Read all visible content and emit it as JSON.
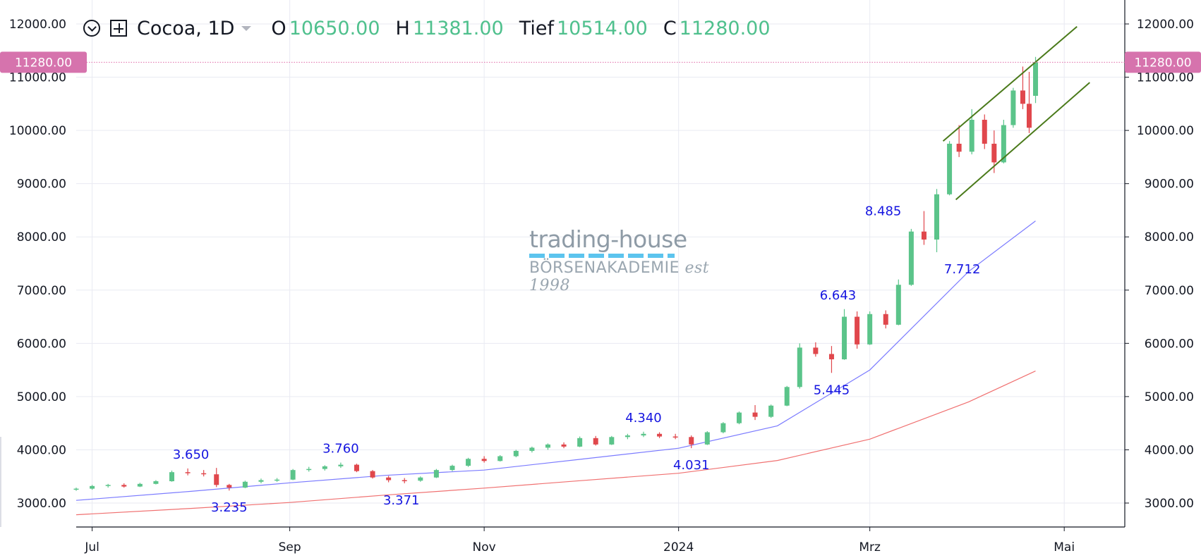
{
  "legend": {
    "symbol": "Cocoa, 1D",
    "open_label": "O",
    "open": "10650.00",
    "high_label": "H",
    "high": "11381.00",
    "low_label": "Tief",
    "low": "10514.00",
    "close_label": "C",
    "close": "11280.00"
  },
  "watermark": {
    "line1": "trading-house",
    "line2": "BÖRSENAKADEMIE",
    "line3": "est 1998"
  },
  "chart_data": {
    "type": "candlestick",
    "x_range": [
      "2023-06-26",
      "2024-05-20"
    ],
    "y_range": [
      2550,
      12450
    ],
    "y_ticks": [
      3000,
      4000,
      5000,
      6000,
      7000,
      8000,
      9000,
      10000,
      11000,
      12000
    ],
    "y_tick_labels": [
      "3000.00",
      "4000.00",
      "5000.00",
      "6000.00",
      "7000.00",
      "8000.00",
      "9000.00",
      "10000.00",
      "11000.00",
      "12000.00"
    ],
    "x_ticks": [
      {
        "date": "2023-07-01",
        "label": "Jul"
      },
      {
        "date": "2023-09-01",
        "label": "Sep"
      },
      {
        "date": "2023-11-01",
        "label": "Nov"
      },
      {
        "date": "2024-01-01",
        "label": "2024"
      },
      {
        "date": "2024-03-01",
        "label": "Mrz"
      },
      {
        "date": "2024-05-01",
        "label": "Mai"
      }
    ],
    "last_price": 11280,
    "last_price_label": "11280.00",
    "grid": true,
    "candles": [
      {
        "date": "2023-06-26",
        "o": 3250,
        "h": 3290,
        "l": 3230,
        "c": 3270
      },
      {
        "date": "2023-07-01",
        "o": 3270,
        "h": 3340,
        "l": 3250,
        "c": 3320
      },
      {
        "date": "2023-07-06",
        "o": 3320,
        "h": 3360,
        "l": 3290,
        "c": 3340
      },
      {
        "date": "2023-07-11",
        "o": 3340,
        "h": 3370,
        "l": 3290,
        "c": 3310
      },
      {
        "date": "2023-07-16",
        "o": 3310,
        "h": 3380,
        "l": 3300,
        "c": 3360
      },
      {
        "date": "2023-07-21",
        "o": 3360,
        "h": 3430,
        "l": 3350,
        "c": 3410
      },
      {
        "date": "2023-07-26",
        "o": 3410,
        "h": 3610,
        "l": 3400,
        "c": 3580
      },
      {
        "date": "2023-07-31",
        "o": 3580,
        "h": 3650,
        "l": 3520,
        "c": 3560
      },
      {
        "date": "2023-08-05",
        "o": 3560,
        "h": 3620,
        "l": 3500,
        "c": 3540
      },
      {
        "date": "2023-08-09",
        "o": 3540,
        "h": 3660,
        "l": 3300,
        "c": 3340
      },
      {
        "date": "2023-08-13",
        "o": 3340,
        "h": 3360,
        "l": 3235,
        "c": 3290
      },
      {
        "date": "2023-08-18",
        "o": 3290,
        "h": 3420,
        "l": 3280,
        "c": 3400
      },
      {
        "date": "2023-08-23",
        "o": 3400,
        "h": 3460,
        "l": 3370,
        "c": 3430
      },
      {
        "date": "2023-08-28",
        "o": 3430,
        "h": 3470,
        "l": 3400,
        "c": 3440
      },
      {
        "date": "2023-09-02",
        "o": 3440,
        "h": 3640,
        "l": 3430,
        "c": 3620
      },
      {
        "date": "2023-09-07",
        "o": 3620,
        "h": 3680,
        "l": 3590,
        "c": 3640
      },
      {
        "date": "2023-09-12",
        "o": 3640,
        "h": 3710,
        "l": 3610,
        "c": 3690
      },
      {
        "date": "2023-09-17",
        "o": 3690,
        "h": 3760,
        "l": 3660,
        "c": 3720
      },
      {
        "date": "2023-09-22",
        "o": 3720,
        "h": 3740,
        "l": 3580,
        "c": 3600
      },
      {
        "date": "2023-09-27",
        "o": 3600,
        "h": 3620,
        "l": 3460,
        "c": 3480
      },
      {
        "date": "2023-10-02",
        "o": 3480,
        "h": 3510,
        "l": 3390,
        "c": 3430
      },
      {
        "date": "2023-10-07",
        "o": 3430,
        "h": 3470,
        "l": 3371,
        "c": 3420
      },
      {
        "date": "2023-10-12",
        "o": 3420,
        "h": 3500,
        "l": 3400,
        "c": 3480
      },
      {
        "date": "2023-10-17",
        "o": 3480,
        "h": 3640,
        "l": 3470,
        "c": 3620
      },
      {
        "date": "2023-10-22",
        "o": 3620,
        "h": 3720,
        "l": 3600,
        "c": 3700
      },
      {
        "date": "2023-10-27",
        "o": 3700,
        "h": 3850,
        "l": 3680,
        "c": 3830
      },
      {
        "date": "2023-11-01",
        "o": 3830,
        "h": 3880,
        "l": 3760,
        "c": 3790
      },
      {
        "date": "2023-11-06",
        "o": 3790,
        "h": 3900,
        "l": 3780,
        "c": 3880
      },
      {
        "date": "2023-11-11",
        "o": 3880,
        "h": 4000,
        "l": 3860,
        "c": 3980
      },
      {
        "date": "2023-11-16",
        "o": 3980,
        "h": 4060,
        "l": 3950,
        "c": 4040
      },
      {
        "date": "2023-11-21",
        "o": 4040,
        "h": 4120,
        "l": 4000,
        "c": 4100
      },
      {
        "date": "2023-11-26",
        "o": 4100,
        "h": 4140,
        "l": 4030,
        "c": 4060
      },
      {
        "date": "2023-12-01",
        "o": 4060,
        "h": 4250,
        "l": 4050,
        "c": 4220
      },
      {
        "date": "2023-12-06",
        "o": 4220,
        "h": 4260,
        "l": 4080,
        "c": 4100
      },
      {
        "date": "2023-12-11",
        "o": 4100,
        "h": 4260,
        "l": 4090,
        "c": 4240
      },
      {
        "date": "2023-12-16",
        "o": 4240,
        "h": 4300,
        "l": 4200,
        "c": 4270
      },
      {
        "date": "2023-12-21",
        "o": 4270,
        "h": 4340,
        "l": 4240,
        "c": 4300
      },
      {
        "date": "2023-12-26",
        "o": 4300,
        "h": 4330,
        "l": 4220,
        "c": 4250
      },
      {
        "date": "2023-12-31",
        "o": 4250,
        "h": 4300,
        "l": 4200,
        "c": 4240
      },
      {
        "date": "2024-01-05",
        "o": 4240,
        "h": 4270,
        "l": 4031,
        "c": 4100
      },
      {
        "date": "2024-01-10",
        "o": 4100,
        "h": 4350,
        "l": 4090,
        "c": 4330
      },
      {
        "date": "2024-01-15",
        "o": 4330,
        "h": 4520,
        "l": 4310,
        "c": 4500
      },
      {
        "date": "2024-01-20",
        "o": 4500,
        "h": 4720,
        "l": 4480,
        "c": 4700
      },
      {
        "date": "2024-01-25",
        "o": 4700,
        "h": 4840,
        "l": 4560,
        "c": 4620
      },
      {
        "date": "2024-01-30",
        "o": 4620,
        "h": 4850,
        "l": 4600,
        "c": 4830
      },
      {
        "date": "2024-02-04",
        "o": 4830,
        "h": 5200,
        "l": 4820,
        "c": 5180
      },
      {
        "date": "2024-02-08",
        "o": 5180,
        "h": 6000,
        "l": 5150,
        "c": 5920
      },
      {
        "date": "2024-02-13",
        "o": 5920,
        "h": 6020,
        "l": 5750,
        "c": 5800
      },
      {
        "date": "2024-02-18",
        "o": 5800,
        "h": 5950,
        "l": 5445,
        "c": 5700
      },
      {
        "date": "2024-02-22",
        "o": 5700,
        "h": 6643,
        "l": 5690,
        "c": 6500
      },
      {
        "date": "2024-02-26",
        "o": 6500,
        "h": 6600,
        "l": 5900,
        "c": 5980
      },
      {
        "date": "2024-03-01",
        "o": 5980,
        "h": 6600,
        "l": 5970,
        "c": 6550
      },
      {
        "date": "2024-03-06",
        "o": 6550,
        "h": 6620,
        "l": 6280,
        "c": 6350
      },
      {
        "date": "2024-03-10",
        "o": 6350,
        "h": 7200,
        "l": 6340,
        "c": 7100
      },
      {
        "date": "2024-03-14",
        "o": 7100,
        "h": 8150,
        "l": 7080,
        "c": 8100
      },
      {
        "date": "2024-03-18",
        "o": 8100,
        "h": 8485,
        "l": 7850,
        "c": 7950
      },
      {
        "date": "2024-03-22",
        "o": 7950,
        "h": 8900,
        "l": 7712,
        "c": 8800
      },
      {
        "date": "2024-03-26",
        "o": 8800,
        "h": 9800,
        "l": 8780,
        "c": 9750
      },
      {
        "date": "2024-03-29",
        "o": 9750,
        "h": 10100,
        "l": 9500,
        "c": 9600
      },
      {
        "date": "2024-04-02",
        "o": 9600,
        "h": 10400,
        "l": 9550,
        "c": 10200
      },
      {
        "date": "2024-04-06",
        "o": 10200,
        "h": 10300,
        "l": 9650,
        "c": 9750
      },
      {
        "date": "2024-04-09",
        "o": 9750,
        "h": 10000,
        "l": 9200,
        "c": 9400
      },
      {
        "date": "2024-04-12",
        "o": 9400,
        "h": 10200,
        "l": 9380,
        "c": 10100
      },
      {
        "date": "2024-04-15",
        "o": 10100,
        "h": 10800,
        "l": 10050,
        "c": 10750
      },
      {
        "date": "2024-04-18",
        "o": 10750,
        "h": 11200,
        "l": 10400,
        "c": 10500
      },
      {
        "date": "2024-04-20",
        "o": 10500,
        "h": 11100,
        "l": 9950,
        "c": 10050
      },
      {
        "date": "2024-04-22",
        "o": 10650,
        "h": 11381,
        "l": 10514,
        "c": 11280
      }
    ],
    "moving_averages": [
      {
        "color": "#7b7bff",
        "points": [
          [
            "2023-06-26",
            3050
          ],
          [
            "2023-08-01",
            3220
          ],
          [
            "2023-09-01",
            3380
          ],
          [
            "2023-10-01",
            3520
          ],
          [
            "2023-11-01",
            3620
          ],
          [
            "2023-12-01",
            3820
          ],
          [
            "2024-01-01",
            4030
          ],
          [
            "2024-02-01",
            4450
          ],
          [
            "2024-03-01",
            5500
          ],
          [
            "2024-04-01",
            7350
          ],
          [
            "2024-04-22",
            8300
          ]
        ]
      },
      {
        "color": "#f07070",
        "points": [
          [
            "2023-06-26",
            2780
          ],
          [
            "2023-08-01",
            2900
          ],
          [
            "2023-09-01",
            3010
          ],
          [
            "2023-10-01",
            3150
          ],
          [
            "2023-11-01",
            3280
          ],
          [
            "2023-12-01",
            3420
          ],
          [
            "2024-01-01",
            3560
          ],
          [
            "2024-02-01",
            3800
          ],
          [
            "2024-03-01",
            4200
          ],
          [
            "2024-04-01",
            4900
          ],
          [
            "2024-04-22",
            5480
          ]
        ]
      }
    ],
    "channel_lines": [
      {
        "color": "#4a7a1a",
        "points": [
          [
            "2024-03-24",
            9800
          ],
          [
            "2024-05-05",
            11950
          ]
        ]
      },
      {
        "color": "#4a7a1a",
        "points": [
          [
            "2024-03-28",
            8700
          ],
          [
            "2024-05-09",
            10900
          ]
        ]
      }
    ],
    "annotations": [
      {
        "text": "3.650",
        "date": "2023-08-01",
        "value": 3650,
        "pos": "above"
      },
      {
        "text": "3.235",
        "date": "2023-08-13",
        "value": 3235,
        "pos": "below"
      },
      {
        "text": "3.760",
        "date": "2023-09-17",
        "value": 3760,
        "pos": "above"
      },
      {
        "text": "3.371",
        "date": "2023-10-06",
        "value": 3371,
        "pos": "below"
      },
      {
        "text": "4.340",
        "date": "2023-12-21",
        "value": 4340,
        "pos": "above"
      },
      {
        "text": "4.031",
        "date": "2024-01-05",
        "value": 4031,
        "pos": "below"
      },
      {
        "text": "6.643",
        "date": "2024-02-20",
        "value": 6643,
        "pos": "above"
      },
      {
        "text": "5.445",
        "date": "2024-02-18",
        "value": 5445,
        "pos": "below"
      },
      {
        "text": "8.485",
        "date": "2024-03-14",
        "value": 8485,
        "pos": "left"
      },
      {
        "text": "7.712",
        "date": "2024-03-30",
        "value": 7712,
        "pos": "below"
      }
    ]
  }
}
